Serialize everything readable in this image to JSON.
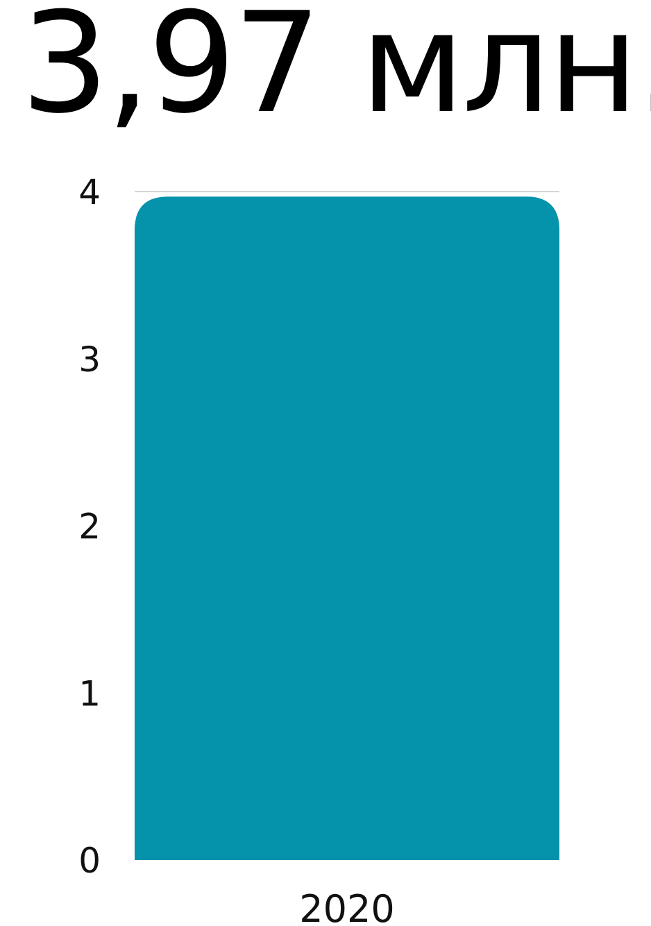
{
  "headline": "3,97 млн.",
  "chart_data": {
    "type": "bar",
    "categories": [
      "2020"
    ],
    "values": [
      3.97
    ],
    "ylim": [
      0,
      4
    ],
    "yticks": [
      "0",
      "1",
      "2",
      "3",
      "4"
    ],
    "xlabel": "",
    "ylabel": "",
    "grid": false,
    "bar_color": "#0592ab",
    "top_rule_color": "#c8c8c8"
  }
}
